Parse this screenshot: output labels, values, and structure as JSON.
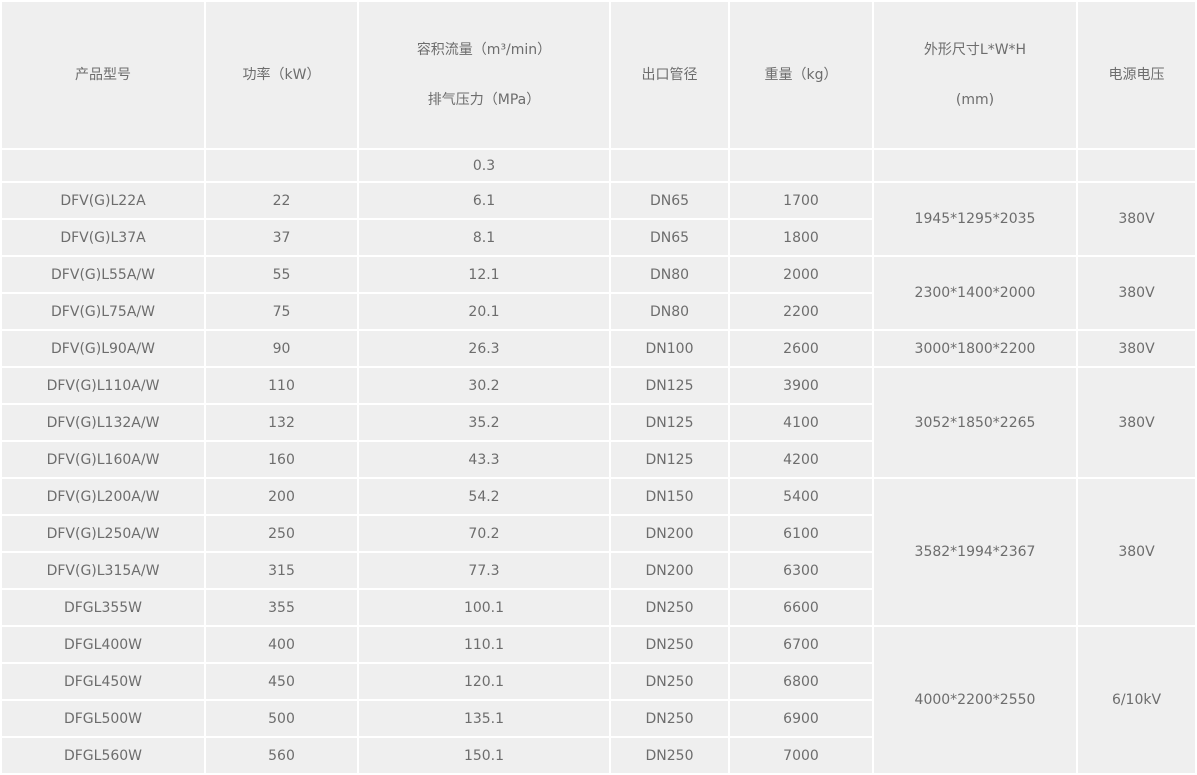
{
  "style": {
    "cell_background": "#efefef",
    "grid_line_color": "#ffffff",
    "text_color": "#6d6d6d"
  },
  "table": {
    "columns": [
      {
        "id": "model",
        "label": "产品型号"
      },
      {
        "id": "power",
        "label": "功率（kW）"
      },
      {
        "id": "flow",
        "label_line1": "容积流量（m³/min）",
        "label_line2": "排气压力（MPa）"
      },
      {
        "id": "outlet",
        "label": "出口管径"
      },
      {
        "id": "weight",
        "label": "重量（kg）"
      },
      {
        "id": "dims",
        "label_line1": "外形尺寸L*W*H",
        "label_line2": "(mm)"
      },
      {
        "id": "voltage",
        "label": "电源电压"
      }
    ],
    "pressure_row": {
      "model": "",
      "power": "",
      "flow": "0.3",
      "outlet": "",
      "weight": "",
      "dims": "",
      "voltage": ""
    },
    "rows": [
      {
        "model": "DFV(G)L22A",
        "power": "22",
        "flow": "6.1",
        "outlet": "DN65",
        "weight": "1700"
      },
      {
        "model": "DFV(G)L37A",
        "power": "37",
        "flow": "8.1",
        "outlet": "DN65",
        "weight": "1800"
      },
      {
        "model": "DFV(G)L55A/W",
        "power": "55",
        "flow": "12.1",
        "outlet": "DN80",
        "weight": "2000"
      },
      {
        "model": "DFV(G)L75A/W",
        "power": "75",
        "flow": "20.1",
        "outlet": "DN80",
        "weight": "2200"
      },
      {
        "model": "DFV(G)L90A/W",
        "power": "90",
        "flow": "26.3",
        "outlet": "DN100",
        "weight": "2600"
      },
      {
        "model": "DFV(G)L110A/W",
        "power": "110",
        "flow": "30.2",
        "outlet": "DN125",
        "weight": "3900"
      },
      {
        "model": "DFV(G)L132A/W",
        "power": "132",
        "flow": "35.2",
        "outlet": "DN125",
        "weight": "4100"
      },
      {
        "model": "DFV(G)L160A/W",
        "power": "160",
        "flow": "43.3",
        "outlet": "DN125",
        "weight": "4200"
      },
      {
        "model": "DFV(G)L200A/W",
        "power": "200",
        "flow": "54.2",
        "outlet": "DN150",
        "weight": "5400"
      },
      {
        "model": "DFV(G)L250A/W",
        "power": "250",
        "flow": "70.2",
        "outlet": "DN200",
        "weight": "6100"
      },
      {
        "model": "DFV(G)L315A/W",
        "power": "315",
        "flow": "77.3",
        "outlet": "DN200",
        "weight": "6300"
      },
      {
        "model": "DFGL355W",
        "power": "355",
        "flow": "100.1",
        "outlet": "DN250",
        "weight": "6600"
      },
      {
        "model": "DFGL400W",
        "power": "400",
        "flow": "110.1",
        "outlet": "DN250",
        "weight": "6700"
      },
      {
        "model": "DFGL450W",
        "power": "450",
        "flow": "120.1",
        "outlet": "DN250",
        "weight": "6800"
      },
      {
        "model": "DFGL500W",
        "power": "500",
        "flow": "135.1",
        "outlet": "DN250",
        "weight": "6900"
      },
      {
        "model": "DFGL560W",
        "power": "560",
        "flow": "150.1",
        "outlet": "DN250",
        "weight": "7000"
      }
    ],
    "merged_groups": [
      {
        "start": 0,
        "span": 2,
        "dims": "1945*1295*2035",
        "voltage": "380V"
      },
      {
        "start": 2,
        "span": 2,
        "dims": "2300*1400*2000",
        "voltage": "380V"
      },
      {
        "start": 4,
        "span": 1,
        "dims": "3000*1800*2200",
        "voltage": "380V"
      },
      {
        "start": 5,
        "span": 3,
        "dims": "3052*1850*2265",
        "voltage": "380V"
      },
      {
        "start": 8,
        "span": 4,
        "dims": "3582*1994*2367",
        "voltage": "380V"
      },
      {
        "start": 12,
        "span": 4,
        "dims": "4000*2200*2550",
        "voltage": "6/10kV"
      }
    ]
  }
}
